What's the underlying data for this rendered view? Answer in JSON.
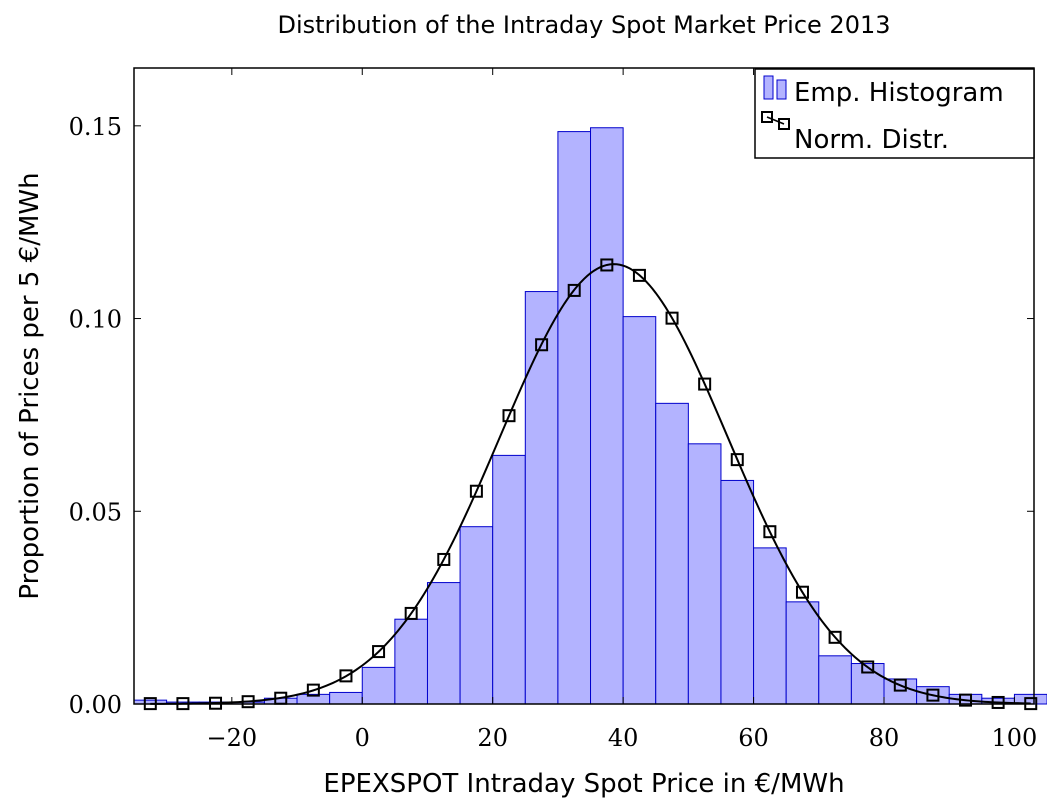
{
  "chart_data": {
    "type": "bar",
    "title": "Distribution of the Intraday Spot Market Price 2013",
    "xlabel": "EPEXSPOT Intraday Spot Price in €/MWh",
    "ylabel": "Proportion of Prices per 5 €/MWh",
    "xlim": [
      -35,
      103
    ],
    "ylim": [
      0,
      0.165
    ],
    "x_ticks": [
      -20,
      0,
      20,
      40,
      60,
      80,
      100
    ],
    "x_tick_labels": [
      "−20",
      "0",
      "20",
      "40",
      "60",
      "80",
      "100"
    ],
    "y_ticks": [
      0,
      0.05,
      0.1,
      0.15
    ],
    "y_tick_labels": [
      "0.00",
      "0.05",
      "0.10",
      "0.15"
    ],
    "legend_position": "top-right",
    "series": [
      {
        "name": "Emp. Histogram",
        "type": "bar",
        "color": "#b3b3ff",
        "edge_color": "#0000cc",
        "bin_width": 5,
        "bin_starts": [
          -35,
          -30,
          -25,
          -20,
          -15,
          -10,
          -5,
          0,
          5,
          10,
          15,
          20,
          25,
          30,
          35,
          40,
          45,
          50,
          55,
          60,
          65,
          70,
          75,
          80,
          85,
          90,
          95,
          100
        ],
        "values": [
          0.001,
          0.0005,
          0.0005,
          0.0005,
          0.0015,
          0.0025,
          0.003,
          0.0095,
          0.022,
          0.0315,
          0.046,
          0.0645,
          0.107,
          0.1485,
          0.1495,
          0.1005,
          0.078,
          0.0675,
          0.058,
          0.0405,
          0.0265,
          0.0125,
          0.0105,
          0.0065,
          0.0045,
          0.0025,
          0.0015,
          0.0025
        ]
      },
      {
        "name": "Norm. Distr.",
        "type": "line",
        "color": "#000000",
        "marker": "square",
        "x": [
          -32.5,
          -27.5,
          -22.5,
          -17.5,
          -12.5,
          -7.5,
          -2.5,
          2.5,
          7.5,
          12.5,
          17.5,
          22.5,
          27.5,
          32.5,
          37.5,
          42.5,
          47.5,
          52.5,
          57.5,
          62.5,
          67.5,
          72.5,
          77.5,
          82.5,
          87.5,
          92.5,
          97.5,
          102.5
        ],
        "values": [
          0.0001,
          0.0001,
          0.0002,
          0.0006,
          0.0015,
          0.0036,
          0.0073,
          0.0136,
          0.0235,
          0.0375,
          0.0552,
          0.0748,
          0.0932,
          0.1073,
          0.1139,
          0.1112,
          0.1001,
          0.083,
          0.0634,
          0.0447,
          0.029,
          0.0173,
          0.0096,
          0.0049,
          0.0023,
          0.001,
          0.0004,
          0.0001
        ]
      }
    ]
  }
}
